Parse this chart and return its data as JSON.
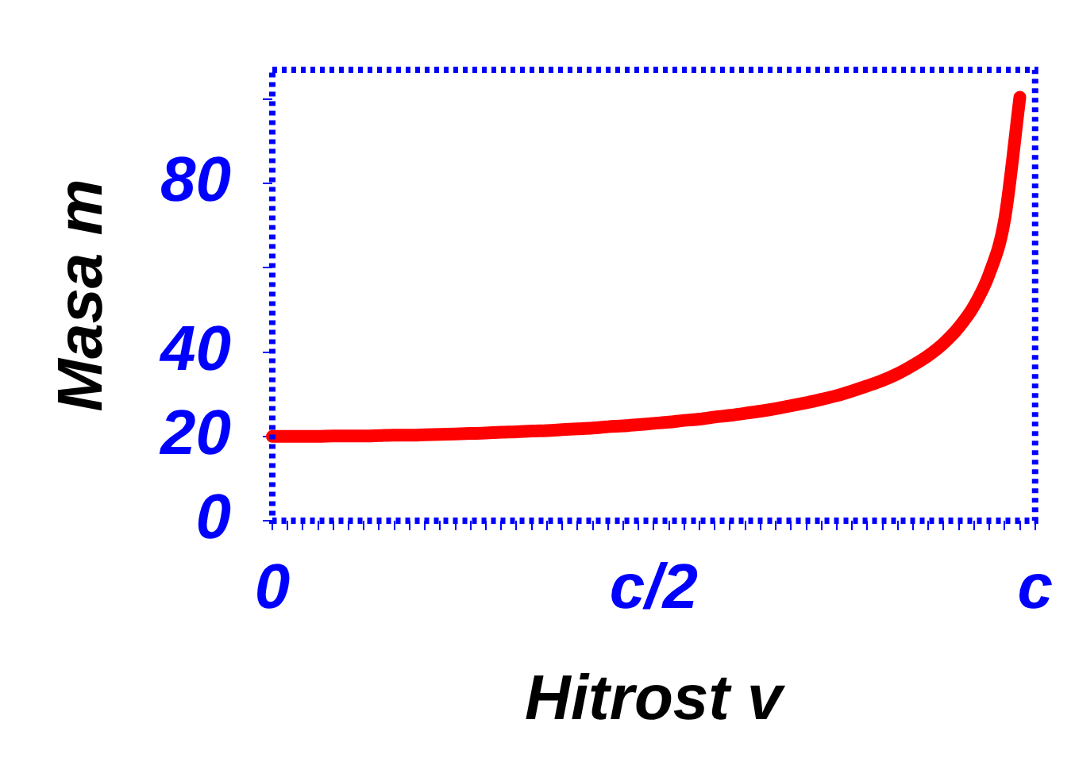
{
  "chart_data": {
    "type": "line",
    "xlabel": "Hitrost v",
    "ylabel": "Masa m",
    "categories": [
      "0",
      null,
      null,
      null,
      null,
      null,
      null,
      null,
      null,
      null,
      null,
      null,
      null,
      null,
      null,
      null,
      null,
      null,
      null,
      null,
      null,
      null,
      null,
      null,
      null,
      "c/2",
      null,
      null,
      null,
      null,
      null,
      null,
      null,
      null,
      null,
      null,
      null,
      null,
      null,
      null,
      null,
      null,
      null,
      null,
      null,
      null,
      null,
      null,
      null,
      null,
      "c"
    ],
    "series": [
      {
        "color": "#ff0000",
        "values": [
          20,
          20,
          20,
          20,
          20.1,
          20.1,
          20.1,
          20.2,
          20.3,
          20.3,
          20.4,
          20.5,
          20.6,
          20.7,
          20.8,
          21,
          21.1,
          21.3,
          21.4,
          21.6,
          21.8,
          22,
          22.3,
          22.5,
          22.8,
          23.1,
          23.4,
          23.8,
          24.1,
          24.6,
          25,
          25.5,
          26,
          26.6,
          27.3,
          28,
          28.8,
          29.7,
          30.8,
          32,
          33.3,
          34.9,
          36.9,
          39.2,
          42.1,
          45.9,
          51,
          58.6,
          71.4,
          100.5,
          null
        ]
      }
    ],
    "ylim": [
      0,
      107
    ],
    "yticks": [
      0,
      20,
      40,
      {
        "value": 60,
        "label": null
      },
      80,
      {
        "value": 100,
        "label": null
      }
    ],
    "grid": false,
    "legend": false,
    "marker": "none",
    "line_style": "solid"
  }
}
